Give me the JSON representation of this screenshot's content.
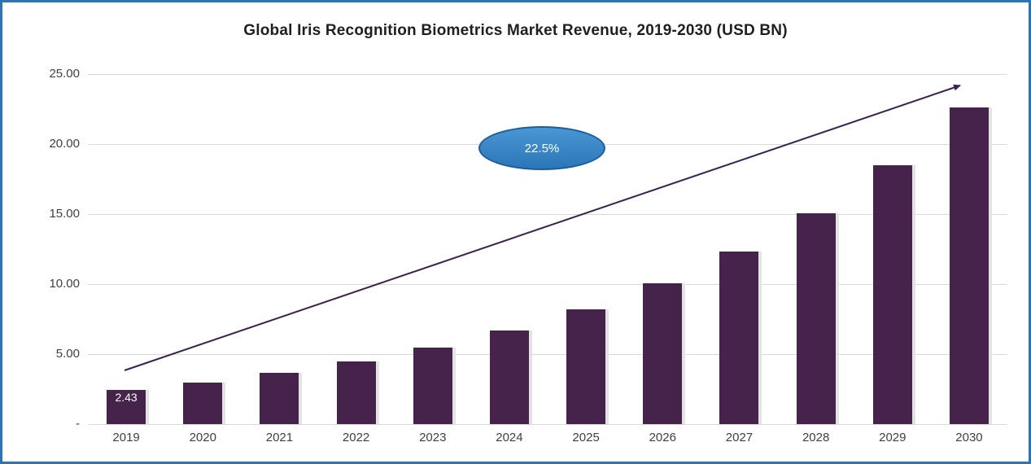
{
  "frame": {
    "border_color": "#2E74B5",
    "background": "#FFFFFF"
  },
  "title": "Global Iris Recognition Biometrics Market Revenue, 2019-2030 (USD BN)",
  "annotation": {
    "label": "22.5%",
    "fill_top": "#4b97d4",
    "fill_bottom": "#2a76b8",
    "border": "#1F5C9E"
  },
  "chart_data": {
    "type": "bar",
    "title": "Global Iris Recognition Biometrics Market Revenue, 2019-2030 (USD BN)",
    "categories": [
      "2019",
      "2020",
      "2021",
      "2022",
      "2023",
      "2024",
      "2025",
      "2026",
      "2027",
      "2028",
      "2029",
      "2030"
    ],
    "values": [
      2.43,
      2.98,
      3.65,
      4.47,
      5.47,
      6.7,
      8.21,
      10.05,
      12.31,
      15.08,
      18.48,
      22.63
    ],
    "data_labels": [
      {
        "category": "2019",
        "text": "2.43"
      }
    ],
    "xlabel": "",
    "ylabel": "",
    "ylim": [
      0,
      25
    ],
    "yticks": [
      {
        "value": 25,
        "label": "25.00"
      },
      {
        "value": 20,
        "label": "20.00"
      },
      {
        "value": 15,
        "label": "15.00"
      },
      {
        "value": 10,
        "label": "10.00"
      },
      {
        "value": 5,
        "label": "5.00"
      },
      {
        "value": 0,
        "label": "-"
      }
    ],
    "grid": true,
    "legend": false,
    "bar_color": "#46234B",
    "annotations": [
      {
        "type": "ellipse",
        "text": "22.5%"
      }
    ],
    "trend_arrow": {
      "present": true,
      "color": "#3A2350"
    }
  }
}
